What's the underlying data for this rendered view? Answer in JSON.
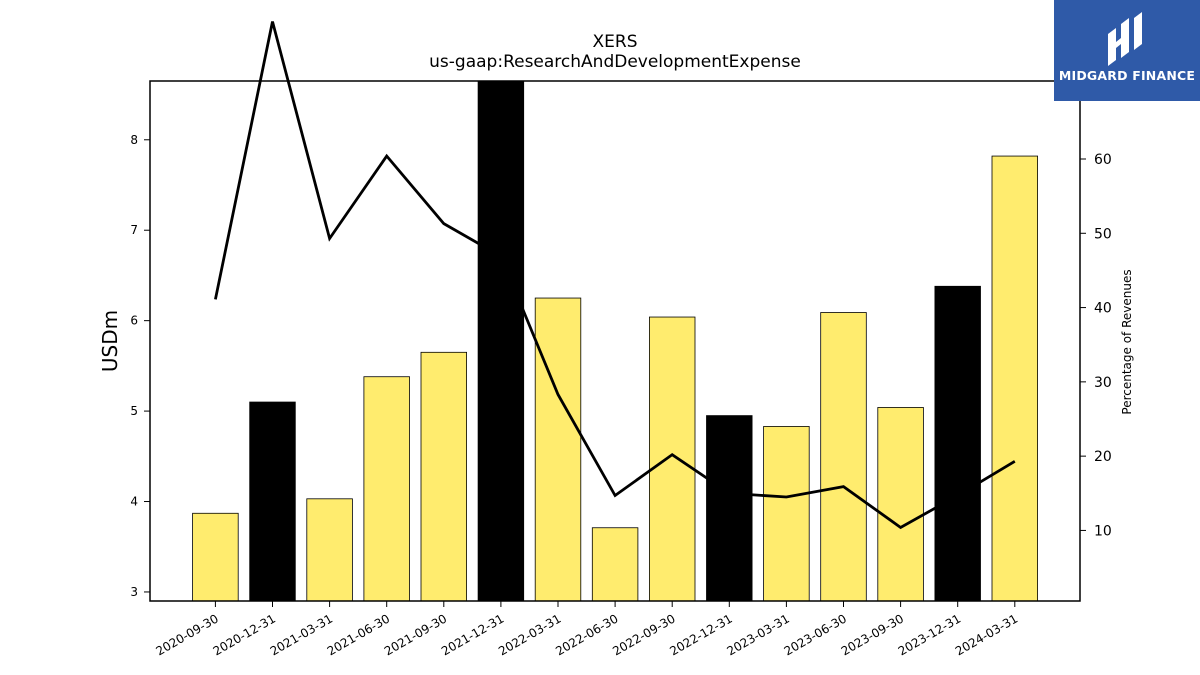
{
  "chart_data": {
    "type": "bar",
    "title": "XERS",
    "subtitle": "us-gaap:ResearchAndDevelopmentExpense",
    "ylabel": "USDm",
    "y2label": "Percentage of Revenues",
    "ylim": [
      2.9,
      8.65
    ],
    "y2lim": [
      0.5,
      70.5
    ],
    "yticks": [
      3,
      4,
      5,
      6,
      7,
      8
    ],
    "y2ticks": [
      10,
      20,
      30,
      40,
      50,
      60
    ],
    "categories": [
      "2020-09-30",
      "2020-12-31",
      "2021-03-31",
      "2021-06-30",
      "2021-09-30",
      "2021-12-31",
      "2022-03-31",
      "2022-06-30",
      "2022-09-30",
      "2022-12-31",
      "2023-03-31",
      "2023-06-30",
      "2023-09-30",
      "2023-12-31",
      "2024-03-31"
    ],
    "series": [
      {
        "kind": "bar",
        "axis": "left",
        "values": [
          3.87,
          5.1,
          4.03,
          5.38,
          5.65,
          8.65,
          6.25,
          3.71,
          6.04,
          4.95,
          4.83,
          6.09,
          5.04,
          6.38,
          7.82
        ],
        "colors": [
          "#ffec6e",
          "#000000",
          "#ffec6e",
          "#ffec6e",
          "#ffec6e",
          "#000000",
          "#ffec6e",
          "#ffec6e",
          "#ffec6e",
          "#000000",
          "#ffec6e",
          "#ffec6e",
          "#ffec6e",
          "#000000",
          "#ffec6e"
        ]
      },
      {
        "kind": "line",
        "axis": "right",
        "color": "#000000",
        "values": [
          41.1,
          78.5,
          49.3,
          60.4,
          51.3,
          46.9,
          28.3,
          14.7,
          20.2,
          15.0,
          14.5,
          15.9,
          10.4,
          14.7,
          19.3
        ]
      }
    ],
    "grid": false,
    "legend": "none"
  },
  "logo": {
    "brand": "MIDGARD FINANCE",
    "icon": "midgard-logo-icon"
  }
}
